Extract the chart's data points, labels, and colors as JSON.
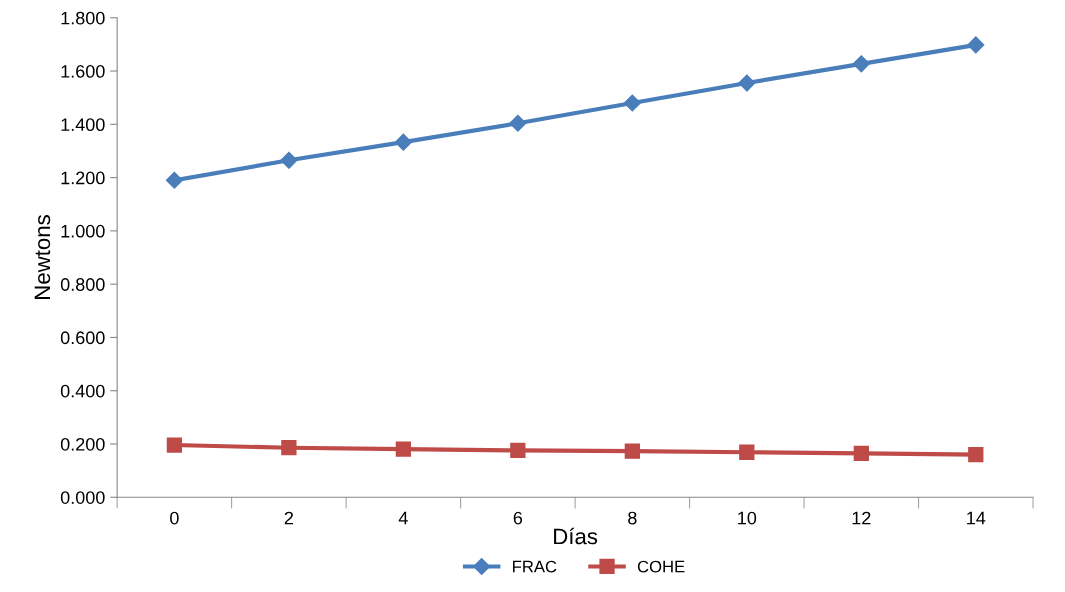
{
  "chart_data": {
    "type": "line",
    "xlabel": "Días",
    "ylabel": "Newtons",
    "categories": [
      "0",
      "2",
      "4",
      "6",
      "8",
      "10",
      "12",
      "14"
    ],
    "series": [
      {
        "name": "FRAC",
        "color": "#4a7ebb",
        "marker": "diamond",
        "values": [
          1.19,
          1.265,
          1.333,
          1.404,
          1.48,
          1.555,
          1.627,
          1.698
        ]
      },
      {
        "name": "COHE",
        "color": "#be4b48",
        "marker": "square",
        "values": [
          0.196,
          0.186,
          0.181,
          0.176,
          0.173,
          0.169,
          0.165,
          0.16
        ]
      }
    ],
    "ylim": [
      0,
      1.8
    ],
    "yticks": [
      {
        "value": 0,
        "label": "0.000"
      },
      {
        "value": 0.2,
        "label": "0.200"
      },
      {
        "value": 0.4,
        "label": "0.400"
      },
      {
        "value": 0.6,
        "label": "0.600"
      },
      {
        "value": 0.8,
        "label": "0.800"
      },
      {
        "value": 1.0,
        "label": "1.000"
      },
      {
        "value": 1.2,
        "label": "1.200"
      },
      {
        "value": 1.4,
        "label": "1.400"
      },
      {
        "value": 1.6,
        "label": "1.600"
      },
      {
        "value": 1.8,
        "label": "1.800"
      }
    ],
    "grid": false,
    "legend": "bottom",
    "line_style": "solid"
  }
}
